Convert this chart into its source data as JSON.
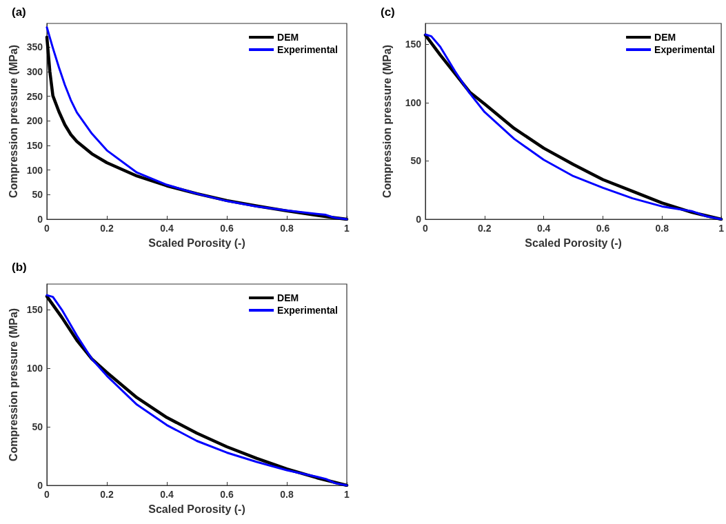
{
  "chart_data": [
    {
      "type": "line",
      "title": "(a)",
      "xlabel": "Scaled Porosity (-)",
      "ylabel": "Compression pressure (MPa)",
      "xlim": [
        0,
        1
      ],
      "xticks": [
        0,
        0.2,
        0.4,
        0.6,
        0.8,
        1
      ],
      "ylim": [
        0,
        398
      ],
      "yticks": [
        0,
        50,
        100,
        150,
        200,
        250,
        300,
        350
      ],
      "legend": "top right",
      "series": [
        {
          "name": "DEM",
          "color": "#000000",
          "x": [
            0,
            0.01,
            0.02,
            0.04,
            0.06,
            0.08,
            0.1,
            0.15,
            0.2,
            0.3,
            0.4,
            0.5,
            0.6,
            0.7,
            0.8,
            0.9,
            0.95,
            1
          ],
          "values": [
            370,
            300,
            251,
            219,
            192,
            172,
            158,
            133,
            115,
            88,
            68,
            52,
            38,
            27,
            17,
            8,
            4,
            0
          ]
        },
        {
          "name": "Experimental",
          "color": "#0000ff",
          "x": [
            0,
            0.02,
            0.04,
            0.06,
            0.08,
            0.1,
            0.15,
            0.2,
            0.3,
            0.4,
            0.5,
            0.6,
            0.7,
            0.8,
            0.9,
            0.93,
            0.96,
            1
          ],
          "values": [
            390,
            348,
            309,
            273,
            242,
            217,
            174,
            140,
            95,
            70,
            52,
            37,
            26,
            18,
            11,
            9,
            3,
            0
          ]
        }
      ]
    },
    {
      "type": "line",
      "title": "(c)",
      "xlabel": "Scaled Porosity (-)",
      "ylabel": "Compression pressure (MPa)",
      "xlim": [
        0,
        1
      ],
      "xticks": [
        0,
        0.2,
        0.4,
        0.6,
        0.8,
        1
      ],
      "ylim": [
        0,
        168
      ],
      "yticks": [
        0,
        50,
        100,
        150
      ],
      "legend": "top right",
      "series": [
        {
          "name": "DEM",
          "color": "#000000",
          "x": [
            0,
            0.05,
            0.1,
            0.15,
            0.2,
            0.3,
            0.4,
            0.5,
            0.6,
            0.7,
            0.8,
            0.9,
            1
          ],
          "values": [
            158,
            141,
            125,
            109,
            99,
            78,
            61,
            47,
            34,
            24,
            14,
            6,
            0
          ]
        },
        {
          "name": "Experimental",
          "color": "#0000ff",
          "x": [
            0,
            0.02,
            0.05,
            0.1,
            0.15,
            0.2,
            0.3,
            0.4,
            0.5,
            0.6,
            0.7,
            0.8,
            0.9,
            0.95,
            1
          ],
          "values": [
            158.5,
            157,
            148,
            127,
            108,
            92,
            69,
            51,
            37,
            27,
            18,
            11,
            7,
            2.5,
            0
          ]
        }
      ]
    },
    {
      "type": "line",
      "title": "(b)",
      "xlabel": "Scaled Porosity (-)",
      "ylabel": "Compression pressure (MPa)",
      "xlim": [
        0,
        1
      ],
      "xticks": [
        0,
        0.2,
        0.4,
        0.6,
        0.8,
        1
      ],
      "ylim": [
        0,
        172
      ],
      "yticks": [
        0,
        50,
        100,
        150
      ],
      "legend": "top right",
      "series": [
        {
          "name": "DEM",
          "color": "#000000",
          "x": [
            0,
            0.05,
            0.1,
            0.15,
            0.2,
            0.3,
            0.4,
            0.5,
            0.6,
            0.7,
            0.8,
            0.9,
            1
          ],
          "values": [
            161.5,
            143.5,
            124,
            108,
            96.5,
            75,
            58,
            44.6,
            33,
            23,
            14,
            6.5,
            0
          ]
        },
        {
          "name": "Experimental",
          "color": "#0000ff",
          "x": [
            0,
            0.02,
            0.05,
            0.1,
            0.15,
            0.2,
            0.3,
            0.4,
            0.5,
            0.6,
            0.7,
            0.8,
            0.9,
            0.93,
            0.96,
            1
          ],
          "values": [
            162.5,
            161,
            150,
            128,
            108,
            93.6,
            69,
            51.5,
            38,
            28,
            20,
            13,
            7.4,
            5.5,
            2,
            0
          ]
        }
      ]
    }
  ]
}
